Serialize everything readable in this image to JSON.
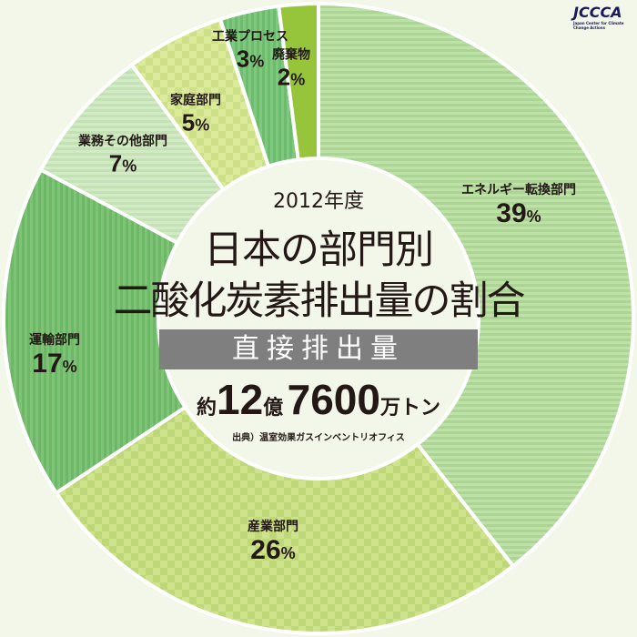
{
  "logo": {
    "text": "JCCCA",
    "subtitle": "Japan Center for Climate Change Actions"
  },
  "center": {
    "year": "2012年度",
    "title_line1": "日本の部門別",
    "title_line2": "二酸化炭素排出量の割合",
    "band": "直接排出量",
    "total_prefix": "約",
    "total_num1": "12",
    "total_unit1": "億",
    "total_num2": "7600",
    "total_unit2": "万トン",
    "source": "出典）温室効果ガスインベントリオフィス"
  },
  "chart_data": {
    "type": "pie",
    "title": "日本の部門別 二酸化炭素排出量の割合",
    "start": "top",
    "direction": "clockwise",
    "slices": [
      {
        "label": "エネルギー転換部門",
        "value": 39,
        "color": "#bfe0a8",
        "color2": "#acd595",
        "pattern": "hstripe"
      },
      {
        "label": "産業部門",
        "value": 26,
        "color": "#cfe38c",
        "color2": "#bed878",
        "pattern": "check"
      },
      {
        "label": "運輸部門",
        "value": 17,
        "color": "#80c378",
        "color2": "#6db866",
        "pattern": "vstripe"
      },
      {
        "label": "業務その他部門",
        "value": 7,
        "color": "#d3e9c8",
        "color2": "#c4e1b5",
        "pattern": "hstripe"
      },
      {
        "label": "家庭部門",
        "value": 5,
        "color": "#dcea9c",
        "color2": "#cde088",
        "pattern": "check"
      },
      {
        "label": "工業プロセス",
        "value": 3,
        "color": "#80c880",
        "color2": "#6dbb6d",
        "pattern": "vstripe"
      },
      {
        "label": "廃棄物",
        "value": 2,
        "color": "#96c43a",
        "color2": "#96c43a",
        "pattern": "solid"
      }
    ]
  }
}
